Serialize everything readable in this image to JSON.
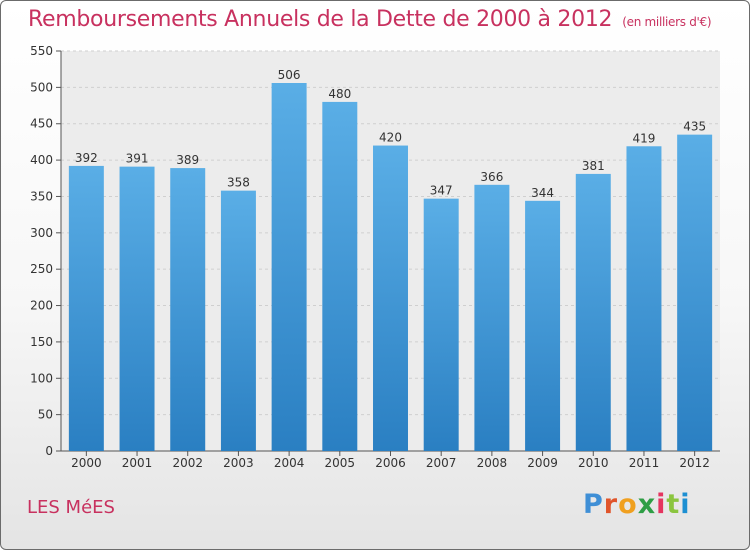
{
  "header": {
    "title": "Remboursements Annuels de la Dette de 2000 à 2012",
    "subtitle": "(en milliers d'€)"
  },
  "footer": {
    "place": "LES MéES",
    "logo_text": "Proxiti"
  },
  "colors": {
    "accent": "#c8315f",
    "bar_top": "#5aaee6",
    "bar_bottom": "#2a7fc2"
  },
  "chart_data": {
    "type": "bar",
    "title": "Remboursements Annuels de la Dette de 2000 à 2012",
    "subtitle": "(en milliers d'€)",
    "xlabel": "",
    "ylabel": "",
    "categories": [
      "2000",
      "2001",
      "2002",
      "2003",
      "2004",
      "2005",
      "2006",
      "2007",
      "2008",
      "2009",
      "2010",
      "2011",
      "2012"
    ],
    "values": [
      392,
      391,
      389,
      358,
      506,
      480,
      420,
      347,
      366,
      344,
      381,
      419,
      435
    ],
    "ylim": [
      0,
      550
    ],
    "yticks": [
      0,
      50,
      100,
      150,
      200,
      250,
      300,
      350,
      400,
      450,
      500,
      550
    ],
    "grid": true,
    "legend": "none"
  }
}
